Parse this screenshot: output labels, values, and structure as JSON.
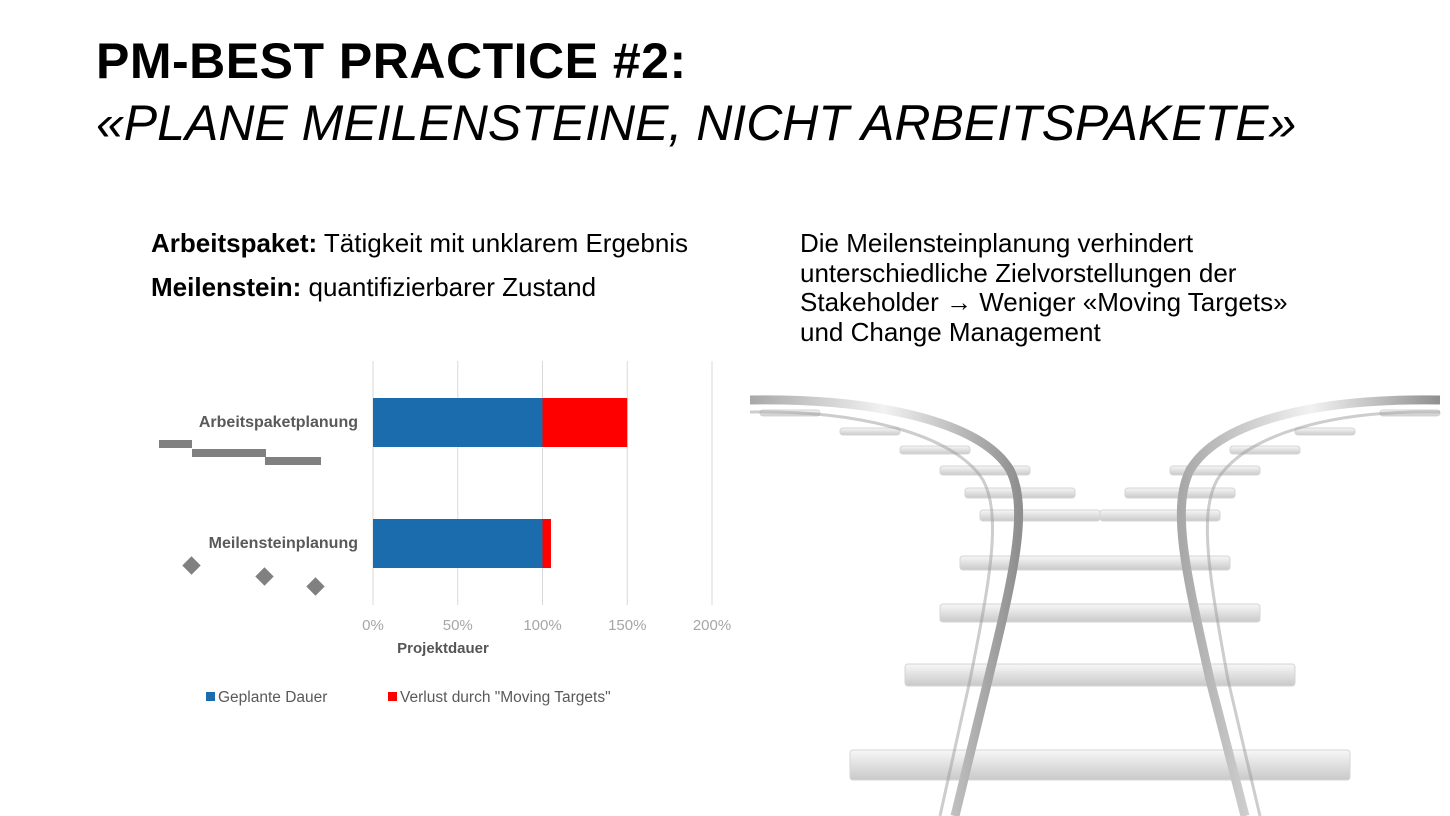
{
  "title": {
    "line1": "PM-BEST PRACTICE #2:",
    "line2": "«PLANE MEILENSTEINE, NICHT ARBEITSPAKETE»"
  },
  "definitions": [
    {
      "term": "Arbeitspaket:",
      "text": "Tätigkeit mit unklarem Ergebnis"
    },
    {
      "term": "Meilenstein:",
      "text": "quantifizierbarer Zustand"
    }
  ],
  "right_text": {
    "line1": "Die Meilensteinplanung verhindert",
    "line2": "unterschiedliche Zielvorstellungen der",
    "line3": "Stakeholder → Weniger «Moving Targets»",
    "line4": "und Change Management"
  },
  "chart_data": {
    "type": "bar",
    "orientation": "horizontal",
    "stacked": true,
    "categories": [
      "Arbeitspaketplanung",
      "Meilensteinplanung"
    ],
    "series": [
      {
        "name": "Geplante Dauer",
        "values": [
          100,
          100
        ],
        "color": "#1a6cad"
      },
      {
        "name": "Verlust durch \"Moving Targets\"",
        "values": [
          50,
          5
        ],
        "color": "#ff0000"
      }
    ],
    "xlim": [
      0,
      200
    ],
    "xticks": [
      "0%",
      "50%",
      "100%",
      "150%",
      "200%"
    ],
    "xlabel": "Projektdauer",
    "grid": true,
    "legend_position": "bottom"
  },
  "icons": {
    "gantt": "gantt-bars-icon",
    "milestones": "milestone-diamonds-icon",
    "tracks": "railway-tracks-illustration"
  }
}
